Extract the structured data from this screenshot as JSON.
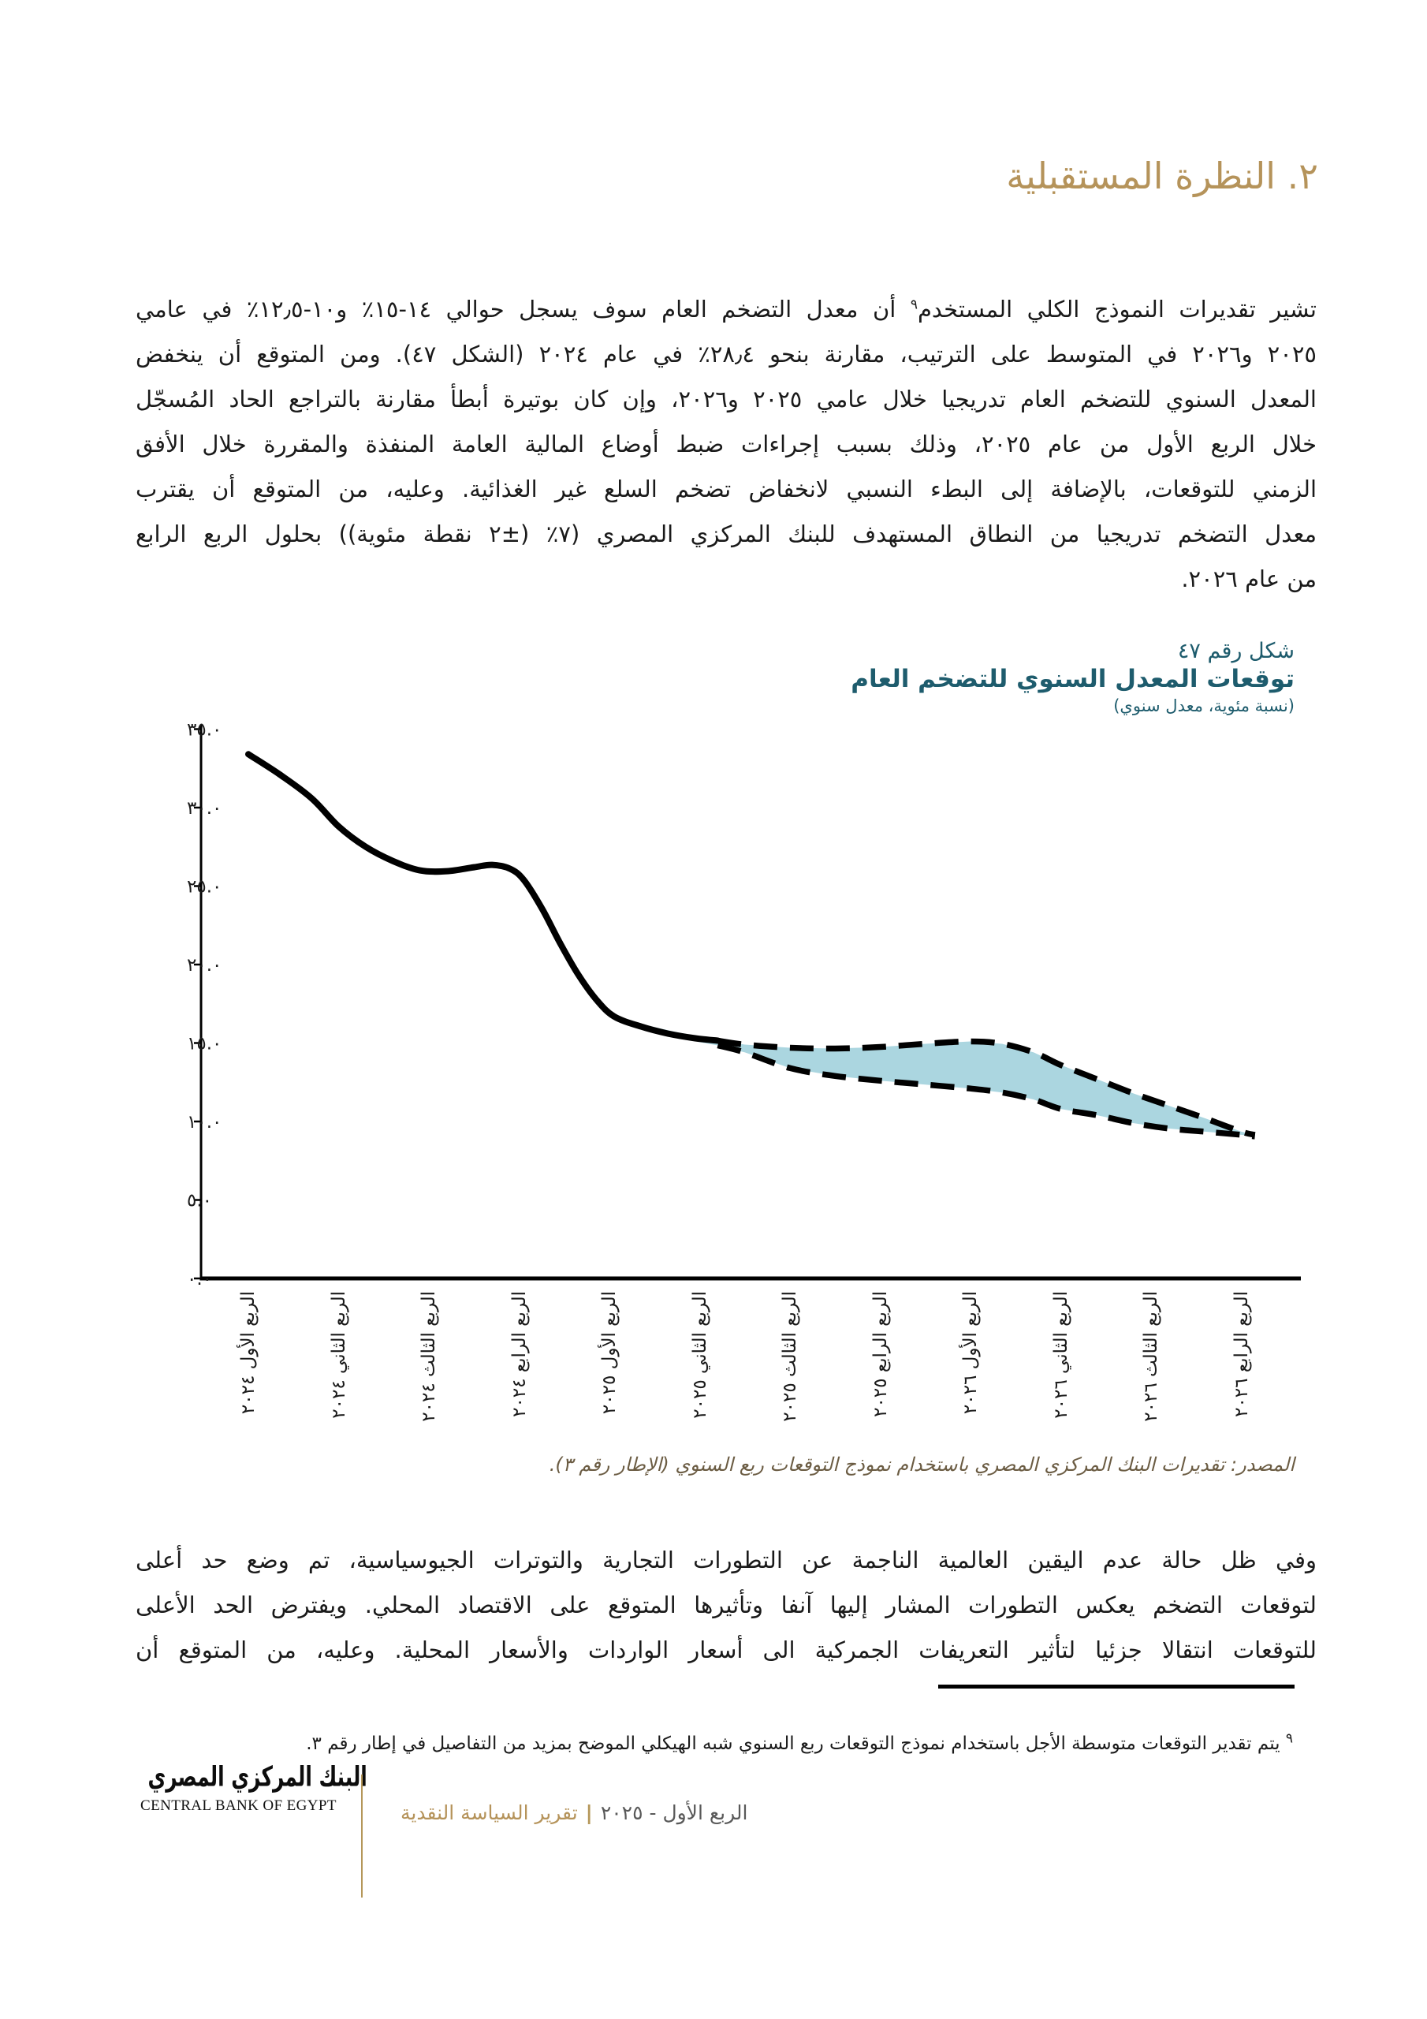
{
  "title": "٢. النظرة المستقبلية",
  "paragraph1": {
    "line1_pre": "تشير تقديرات النموذج الكلي المستخدم",
    "line1_sup": "٩",
    "line1_post": " أن معدل التضخم العام سوف يسجل حوالي ١٤-١٥٪ و١٠-١٢٫٥٪ في عامي",
    "lines": [
      "٢٠٢٥ و٢٠٢٦ في المتوسط على الترتيب، مقارنة بنحو ٢٨٫٤٪ في عام ٢٠٢٤ (الشكل ٤٧). ومن المتوقع أن ينخفض",
      "المعدل السنوي للتضخم العام تدريجيا خلال عامي ٢٠٢٥ و٢٠٢٦، وإن كان بوتيرة أبطأ مقارنة بالتراجع الحاد المُسجّل",
      "خلال الربع الأول من عام ٢٠٢٥، وذلك بسبب إجراءات ضبط أوضاع المالية العامة المنفذة والمقررة خلال الأفق",
      "الزمني للتوقعات، بالإضافة إلى البطء النسبي لانخفاض تضخم السلع غير الغذائية. وعليه، من المتوقع أن يقترب",
      "معدل التضخم تدريجيا من النطاق المستهدف للبنك المركزي المصري (٧٪ (±٢ نقطة مئوية)) بحلول الربع الرابع",
      "من عام ٢٠٢٦."
    ]
  },
  "chart_header": {
    "figure_label": "شكل رقم ٤٧",
    "title": "توقعات المعدل السنوي للتضخم العام",
    "subtitle": "(نسبة مئوية، معدل سنوي)"
  },
  "chart_data": {
    "type": "line",
    "figure_label": "شكل رقم ٤٧",
    "title": "توقعات المعدل السنوي للتضخم العام",
    "subtitle": "(نسبة مئوية، معدل سنوي)",
    "grid": false,
    "legend_position": "none",
    "ylim": [
      0,
      35
    ],
    "ytick_step": 5,
    "ytick_labels": [
      "٠.٠",
      "٥.٠",
      "١٠.٠",
      "١٥.٠",
      "٢٠.٠",
      "٢٥.٠",
      "٣٠.٠",
      "٣٥.٠"
    ],
    "categories": [
      "الربع الأول ٢٠٢٤",
      "الربع الثاني ٢٠٢٤",
      "الربع الثالث ٢٠٢٤",
      "الربع الرابع ٢٠٢٤",
      "الربع الأول ٢٠٢٥",
      "الربع الثاني ٢٠٢٥",
      "الربع الثالث ٢٠٢٥",
      "الربع الرابع ٢٠٢٥",
      "الربع الأول ٢٠٢٦",
      "الربع الثاني ٢٠٢٦",
      "الربع الثالث ٢٠٢٦",
      "الربع الرابع ٢٠٢٦"
    ],
    "series": [
      {
        "name": "historical",
        "style": "solid",
        "values": [
          33.4,
          28.8,
          26.0,
          25.2,
          16.8,
          15.3,
          null,
          null,
          null,
          null,
          null,
          null
        ]
      },
      {
        "name": "forecast_upper",
        "style": "dashed",
        "values": [
          null,
          null,
          null,
          null,
          null,
          15.2,
          14.7,
          14.8,
          15.1,
          13.6,
          11.4,
          9.3
        ]
      },
      {
        "name": "forecast_lower",
        "style": "dashed",
        "values": [
          null,
          null,
          null,
          null,
          null,
          14.9,
          13.4,
          12.6,
          12.1,
          10.8,
          9.6,
          9.1
        ]
      }
    ],
    "band_color": "#abd6e0",
    "line_color": "#000000",
    "render": {
      "dash_start_x": 5.2,
      "historical": [
        [
          0,
          33.4
        ],
        [
          0.35,
          32.1
        ],
        [
          0.7,
          30.6
        ],
        [
          1,
          28.8
        ],
        [
          1.3,
          27.5
        ],
        [
          1.6,
          26.6
        ],
        [
          1.9,
          26.0
        ],
        [
          2.2,
          25.95
        ],
        [
          2.5,
          26.2
        ],
        [
          2.7,
          26.35
        ],
        [
          2.9,
          26.1
        ],
        [
          3.05,
          25.4
        ],
        [
          3.25,
          23.6
        ],
        [
          3.45,
          21.4
        ],
        [
          3.65,
          19.4
        ],
        [
          3.85,
          17.8
        ],
        [
          4.05,
          16.7
        ],
        [
          4.35,
          16.05
        ],
        [
          4.65,
          15.6
        ],
        [
          4.95,
          15.3
        ],
        [
          5.2,
          15.15
        ]
      ],
      "upper": [
        [
          4.1,
          16.7
        ],
        [
          4.4,
          16.15
        ],
        [
          4.7,
          15.75
        ],
        [
          5,
          15.4
        ],
        [
          5.2,
          15.15
        ],
        [
          5.5,
          14.9
        ],
        [
          6,
          14.7
        ],
        [
          6.5,
          14.65
        ],
        [
          7,
          14.75
        ],
        [
          7.5,
          14.95
        ],
        [
          8,
          15.1
        ],
        [
          8.35,
          14.95
        ],
        [
          8.7,
          14.4
        ],
        [
          9,
          13.6
        ],
        [
          9.4,
          12.7
        ],
        [
          9.8,
          11.8
        ],
        [
          10.2,
          11.0
        ],
        [
          10.6,
          10.2
        ],
        [
          11,
          9.35
        ],
        [
          11.15,
          9.15
        ]
      ],
      "lower": [
        [
          4.1,
          16.6
        ],
        [
          4.4,
          15.95
        ],
        [
          4.7,
          15.45
        ],
        [
          5,
          15.05
        ],
        [
          5.2,
          14.85
        ],
        [
          5.5,
          14.4
        ],
        [
          6,
          13.4
        ],
        [
          6.5,
          12.9
        ],
        [
          7,
          12.6
        ],
        [
          7.5,
          12.35
        ],
        [
          8,
          12.1
        ],
        [
          8.35,
          11.85
        ],
        [
          8.7,
          11.4
        ],
        [
          9,
          10.8
        ],
        [
          9.4,
          10.4
        ],
        [
          9.8,
          9.9
        ],
        [
          10.2,
          9.55
        ],
        [
          10.6,
          9.35
        ],
        [
          11,
          9.15
        ],
        [
          11.15,
          9.05
        ]
      ]
    }
  },
  "source_line": "المصدر: تقديرات البنك المركزي المصري باستخدام نموذج التوقعات ربع السنوي (الإطار رقم ٣).",
  "paragraph2": {
    "lines": [
      "وفي ظل حالة عدم اليقين العالمية الناجمة عن التطورات التجارية والتوترات الجيوسياسية، تم وضع حد أعلى",
      "لتوقعات التضخم يعكس التطورات المشار إليها آنفا وتأثيرها المتوقع على الاقتصاد المحلي. ويفترض الحد الأعلى",
      "للتوقعات انتقالا جزئيا لتأثير التعريفات الجمركية الى أسعار الواردات والأسعار المحلية. وعليه، من المتوقع أن"
    ]
  },
  "footnote": {
    "sup": "٩",
    "text": " يتم تقدير التوقعات متوسطة الأجل باستخدام نموذج التوقعات ربع السنوي شبه الهيكلي الموضح بمزيد من التفاصيل في إطار رقم ٣."
  },
  "footer": {
    "logo_arabic": "البنك المركزي المصري",
    "logo_english": "CENTRAL BANK OF EGYPT",
    "report_period": "الربع الأول - ٢٠٢٥",
    "separator": "|",
    "report_name": "تقرير السياسة النقدية"
  },
  "colors": {
    "accent_gold": "#b5935a",
    "teal": "#1e5c6d",
    "band_blue": "#abd6e0",
    "source_text": "#6b5c43",
    "footer_gray": "#595959"
  }
}
